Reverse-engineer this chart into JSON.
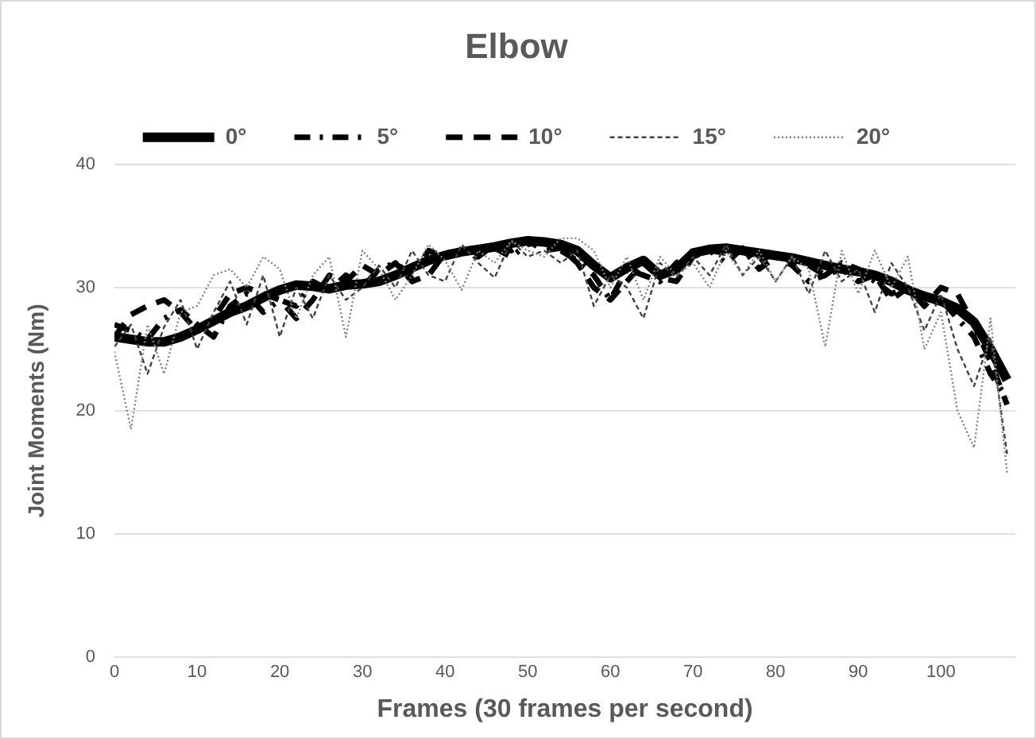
{
  "chart_data": {
    "type": "line",
    "title": "Elbow",
    "xlabel": "Frames (30 frames per second)",
    "ylabel": "Joint Moments (Nm)",
    "x": [
      0,
      2,
      4,
      6,
      8,
      10,
      12,
      14,
      16,
      18,
      20,
      22,
      24,
      26,
      28,
      30,
      32,
      34,
      36,
      38,
      40,
      42,
      44,
      46,
      48,
      50,
      52,
      54,
      56,
      58,
      60,
      62,
      64,
      66,
      68,
      70,
      72,
      74,
      76,
      78,
      80,
      82,
      84,
      86,
      88,
      90,
      92,
      94,
      96,
      98,
      100,
      102,
      104,
      106,
      108
    ],
    "xlim": [
      0,
      109
    ],
    "xticks": [
      0,
      10,
      20,
      30,
      40,
      50,
      60,
      70,
      80,
      90,
      100
    ],
    "ylim": [
      0,
      40
    ],
    "yticks": [
      0,
      10,
      20,
      30,
      40
    ],
    "grid": "y",
    "legend": "top",
    "marker": "none",
    "series": [
      {
        "name": "0°",
        "color": "#000000",
        "line_style": "solid",
        "values": [
          26,
          25.8,
          25.6,
          25.6,
          26,
          26.6,
          27.3,
          28,
          28.5,
          29.2,
          29.8,
          30.2,
          30.1,
          29.9,
          30.2,
          30.3,
          30.5,
          31,
          31.6,
          32.2,
          32.6,
          32.9,
          33.1,
          33.3,
          33.6,
          33.8,
          33.7,
          33.5,
          33,
          31.8,
          30.8,
          31.6,
          32.2,
          31,
          31.5,
          32.8,
          33.1,
          33.2,
          33,
          32.8,
          32.6,
          32.4,
          32.1,
          31.8,
          31.5,
          31.3,
          31,
          30.5,
          29.8,
          29.3,
          28.9,
          28.3,
          27.2,
          25,
          22.5
        ]
      },
      {
        "name": "5°",
        "color": "#000000",
        "line_style": "dashed",
        "values": [
          27,
          26.5,
          25.8,
          27.5,
          28.2,
          27,
          26,
          28.5,
          29.5,
          28,
          29,
          28.5,
          30.5,
          29.8,
          31,
          30,
          31.5,
          32,
          31,
          33,
          32.5,
          33,
          32.8,
          33.2,
          32.5,
          33.5,
          33.8,
          33,
          32.2,
          31,
          29,
          31.5,
          31,
          30.5,
          32,
          32.8,
          33,
          32,
          33.2,
          31.5,
          32.5,
          31.8,
          30.5,
          31,
          32,
          31.5,
          30.5,
          29.5,
          30,
          28.5,
          29,
          27.5,
          26,
          23,
          21
        ]
      },
      {
        "name": "10°",
        "color": "#000000",
        "line_style": "dashed",
        "values": [
          26,
          27.8,
          28.5,
          29,
          28,
          26.5,
          27.5,
          29.5,
          30,
          29.5,
          29,
          27.5,
          29,
          31,
          30.5,
          31.8,
          31,
          32,
          30.5,
          31,
          32.8,
          33,
          32.5,
          33.5,
          33,
          33.8,
          33,
          33.2,
          32,
          30,
          29,
          30.5,
          32,
          30.8,
          30.5,
          32.5,
          33,
          32.8,
          33,
          32,
          33,
          32,
          31.8,
          31,
          31.5,
          30.5,
          31,
          29,
          30,
          28.5,
          30,
          29.5,
          27,
          24,
          20.5
        ]
      },
      {
        "name": "15°",
        "color": "#404040",
        "line_style": "dashed",
        "values": [
          25.2,
          27,
          23,
          26.8,
          29,
          25,
          28,
          30.5,
          27,
          31,
          26,
          30,
          27.5,
          31,
          29,
          30,
          31.8,
          30,
          33,
          31,
          30.5,
          33.5,
          32,
          30.8,
          33.8,
          32.5,
          33,
          32,
          33,
          28.5,
          31,
          30,
          27.5,
          32,
          30.8,
          32.5,
          31,
          33.5,
          31,
          32.5,
          30.5,
          32.5,
          29.5,
          33,
          30.5,
          31.5,
          28,
          32,
          30,
          26.5,
          29.5,
          25,
          22,
          26,
          16.5
        ]
      },
      {
        "name": "20°",
        "color": "#808080",
        "line_style": "dotted",
        "values": [
          24.8,
          18.5,
          27,
          23,
          28,
          28.5,
          31,
          31.5,
          30,
          32.5,
          31.5,
          27.5,
          31,
          32.5,
          26,
          33,
          31.5,
          29,
          31,
          33.5,
          32.2,
          29.8,
          33,
          32,
          33.8,
          33,
          32.5,
          34,
          34,
          33,
          30,
          32.5,
          29,
          32.5,
          31,
          32,
          30,
          33,
          31,
          33,
          30.5,
          32.5,
          31.5,
          25.2,
          33,
          29.5,
          33,
          30,
          32.5,
          25,
          28,
          20,
          17,
          27.5,
          15
        ]
      }
    ]
  }
}
